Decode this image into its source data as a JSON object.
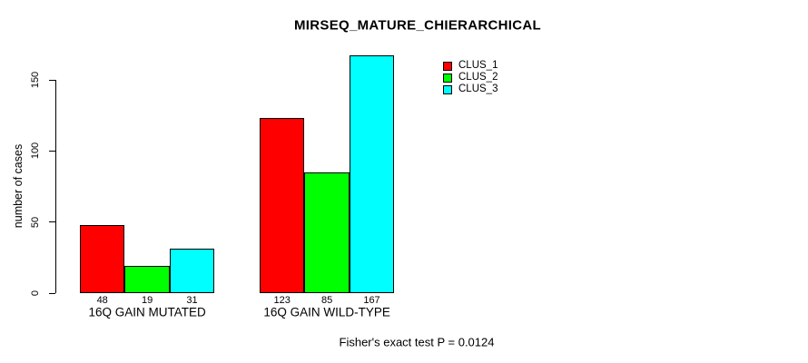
{
  "title": "MIRSEQ_MATURE_CHIERARCHICAL",
  "annotation": "Fisher's exact test P = 0.0124",
  "colors": {
    "clus1": "#FF0000",
    "clus2": "#00FF00",
    "clus3": "#00FFFF",
    "axis": "#000000",
    "background": "#FFFFFF"
  },
  "chart_data": {
    "type": "bar",
    "title": "MIRSEQ_MATURE_CHIERARCHICAL",
    "categories": [
      "16Q GAIN MUTATED",
      "16Q GAIN WILD-TYPE"
    ],
    "series": [
      {
        "name": "CLUS_1",
        "color": "#FF0000",
        "values": [
          48,
          123
        ]
      },
      {
        "name": "CLUS_2",
        "color": "#00FF00",
        "values": [
          19,
          85
        ]
      },
      {
        "name": "CLUS_3",
        "color": "#00FFFF",
        "values": [
          31,
          167
        ]
      }
    ],
    "xlabel": "",
    "ylabel": "number of cases",
    "yticks": [
      "0",
      "50",
      "100",
      "150"
    ],
    "ytick_values": [
      0,
      50,
      100,
      150
    ],
    "ylim": [
      0,
      170
    ],
    "grid": false,
    "bar_value_labels": true,
    "legend_position": "top-right",
    "annotation": "Fisher's exact test P = 0.0124"
  }
}
